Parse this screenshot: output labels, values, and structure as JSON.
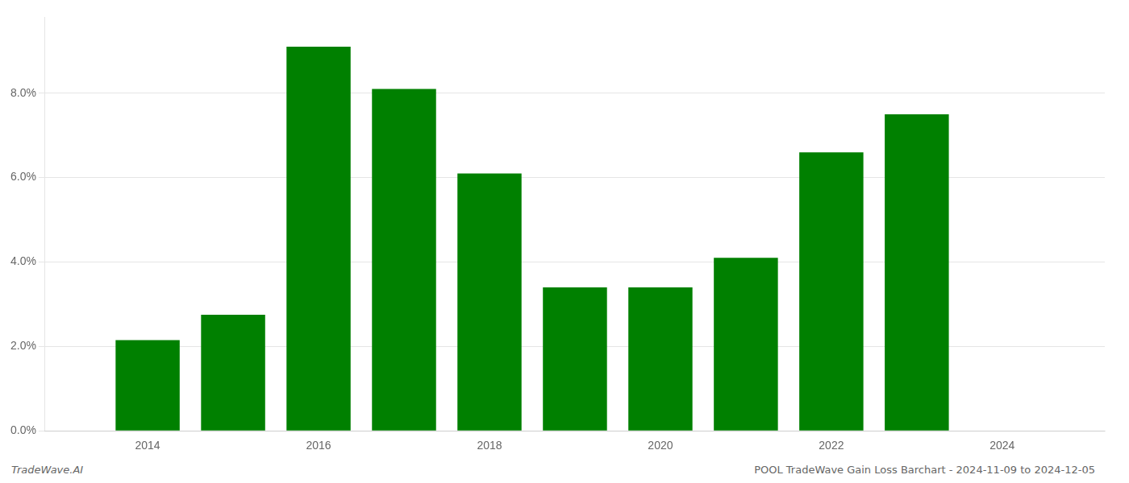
{
  "chart_data": {
    "type": "bar",
    "x": [
      2014,
      2015,
      2016,
      2017,
      2018,
      2019,
      2020,
      2021,
      2022,
      2023
    ],
    "values": [
      0.0215,
      0.0275,
      0.091,
      0.081,
      0.061,
      0.034,
      0.034,
      0.041,
      0.066,
      0.075
    ],
    "color": "#008000",
    "xlim": [
      2012.8,
      2025.2
    ],
    "xticks": [
      2014,
      2016,
      2018,
      2020,
      2022,
      2024
    ],
    "ylim": [
      0,
      0.098
    ],
    "yticks": [
      {
        "value": 0.0,
        "label": "0.0%"
      },
      {
        "value": 0.02,
        "label": "2.0%"
      },
      {
        "value": 0.04,
        "label": "4.0%"
      },
      {
        "value": 0.06,
        "label": "6.0%"
      },
      {
        "value": 0.08,
        "label": "8.0%"
      }
    ],
    "grid": "y",
    "annotations": [
      "TradeWave.AI",
      "POOL TradeWave Gain Loss Barchart - 2024-11-09 to 2024-12-05"
    ]
  }
}
